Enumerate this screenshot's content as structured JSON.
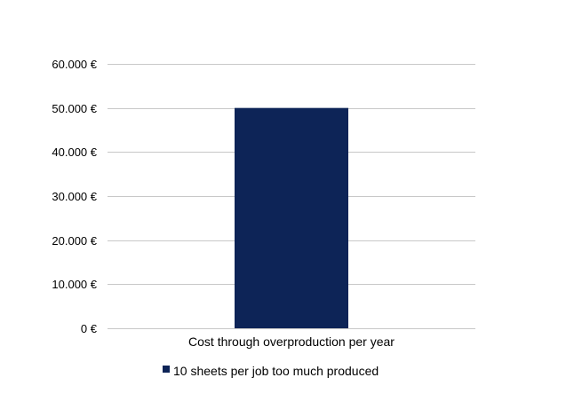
{
  "chart_data": {
    "type": "bar",
    "title": "",
    "xlabel": "",
    "ylabel": "",
    "categories": [
      "Cost through overproduction per year"
    ],
    "series": [
      {
        "name": "10 sheets per job too much produced",
        "values": [
          50000
        ],
        "color": "#0d2457"
      }
    ],
    "ylim": [
      0,
      60000
    ],
    "yticks": [
      0,
      10000,
      20000,
      30000,
      40000,
      50000,
      60000
    ],
    "ytick_labels": [
      "0 €",
      "10.000 €",
      "20.000 €",
      "30.000 €",
      "40.000 €",
      "50.000 €",
      "60.000 €"
    ],
    "grid": true,
    "legend_position": "bottom"
  }
}
